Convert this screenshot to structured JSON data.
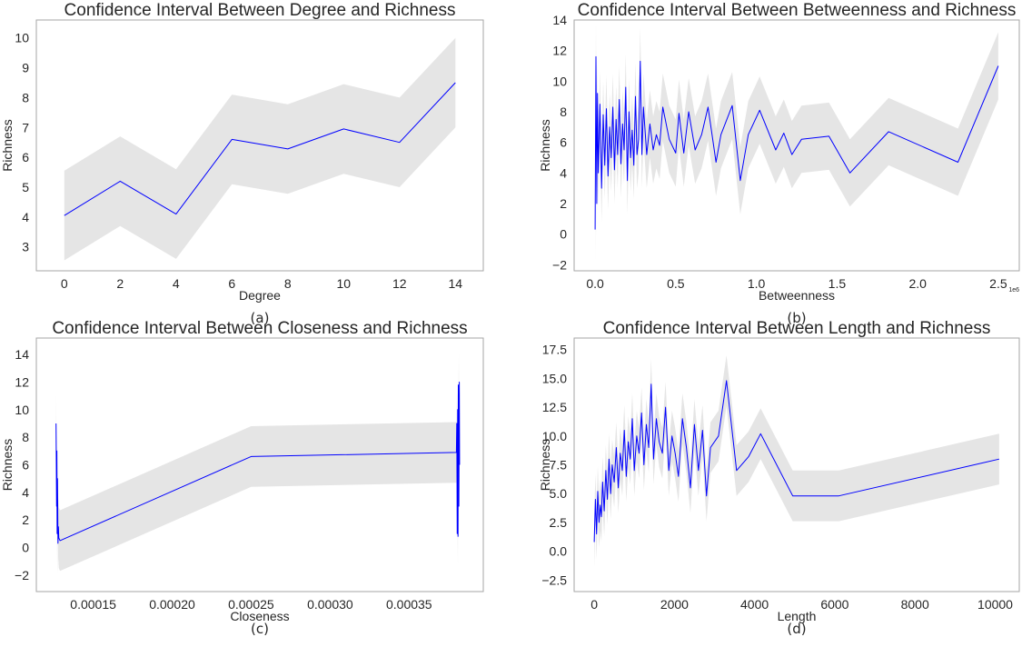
{
  "chart_data": [
    {
      "type": "line",
      "panel": "(a)",
      "title": "Confidence Interval Between Degree and Richness",
      "xlabel": "Degree",
      "ylabel": "Richness",
      "xlim": [
        -1,
        15
      ],
      "ylim": [
        2.2,
        10.6
      ],
      "xticks": [
        0,
        2,
        4,
        6,
        8,
        10,
        12,
        14
      ],
      "xtick_labels": [
        "0",
        "2",
        "4",
        "6",
        "8",
        "10",
        "12",
        "14"
      ],
      "yticks": [
        3,
        4,
        5,
        6,
        7,
        8,
        9,
        10
      ],
      "ytick_labels": [
        "3",
        "4",
        "5",
        "6",
        "7",
        "8",
        "9",
        "10"
      ],
      "grid": false,
      "line_color": "#0000ff",
      "band_color": "#e5e5e5",
      "series": [
        {
          "x": [
            0,
            2,
            4,
            6,
            8,
            10,
            12,
            14
          ],
          "y": [
            4.05,
            5.2,
            4.1,
            6.6,
            6.28,
            6.95,
            6.5,
            8.5
          ],
          "lower": [
            2.55,
            3.7,
            2.6,
            5.1,
            4.78,
            5.45,
            5.0,
            7.0
          ],
          "upper": [
            5.55,
            6.7,
            5.6,
            8.1,
            7.78,
            8.45,
            8.0,
            10.0
          ]
        }
      ]
    },
    {
      "type": "line",
      "panel": "(b)",
      "title": "Confidence Interval Between Betweenness and Richness",
      "xlabel": "Betweenness",
      "ylabel": "Richness",
      "offset_label": "1e6",
      "xlim": [
        -0.13,
        2.63
      ],
      "ylim": [
        -2.4,
        14.0
      ],
      "xticks": [
        0.0,
        0.5,
        1.0,
        1.5,
        2.0,
        2.5
      ],
      "xtick_labels": [
        "0.0",
        "0.5",
        "1.0",
        "1.5",
        "2.0",
        "2.5"
      ],
      "yticks": [
        -2,
        0,
        2,
        4,
        6,
        8,
        10,
        12,
        14
      ],
      "ytick_labels": [
        "−2",
        "0",
        "2",
        "4",
        "6",
        "8",
        "10",
        "12",
        "14"
      ],
      "grid": false,
      "line_color": "#0000ff",
      "band_color": "#e5e5e5",
      "series": [
        {
          "x": [
            0.0,
            0.005,
            0.01,
            0.015,
            0.02,
            0.03,
            0.04,
            0.05,
            0.06,
            0.07,
            0.08,
            0.09,
            0.1,
            0.11,
            0.12,
            0.13,
            0.14,
            0.15,
            0.16,
            0.17,
            0.18,
            0.19,
            0.2,
            0.21,
            0.22,
            0.23,
            0.24,
            0.25,
            0.26,
            0.27,
            0.28,
            0.29,
            0.3,
            0.32,
            0.34,
            0.36,
            0.38,
            0.4,
            0.42,
            0.46,
            0.5,
            0.52,
            0.55,
            0.58,
            0.62,
            0.66,
            0.7,
            0.75,
            0.78,
            0.85,
            0.9,
            0.95,
            1.02,
            1.12,
            1.17,
            1.22,
            1.28,
            1.45,
            1.58,
            1.82,
            2.25,
            2.5
          ],
          "y": [
            0.3,
            11.6,
            2.0,
            9.2,
            4.0,
            8.5,
            3.0,
            7.8,
            4.5,
            8.2,
            3.8,
            7.0,
            5.0,
            8.3,
            4.2,
            7.5,
            5.2,
            8.8,
            4.6,
            7.2,
            5.5,
            9.6,
            3.5,
            8.0,
            5.0,
            6.8,
            4.5,
            9.0,
            5.2,
            6.2,
            11.3,
            5.2,
            8.3,
            5.2,
            7.2,
            5.5,
            6.5,
            5.8,
            8.3,
            6.2,
            5.3,
            7.9,
            5.3,
            8.0,
            5.5,
            6.5,
            8.3,
            4.7,
            6.5,
            8.4,
            3.5,
            6.5,
            8.1,
            5.5,
            6.6,
            5.2,
            6.2,
            6.4,
            4.0,
            6.7,
            4.7,
            11.0
          ]
        }
      ]
    },
    {
      "type": "line",
      "panel": "(c)",
      "title": "Confidence Interval Between Closeness and Richness",
      "xlabel": "Closeness",
      "ylabel": "Richness",
      "xlim": [
        0.000114,
        0.000397
      ],
      "ylim": [
        -3.2,
        15.2
      ],
      "xticks": [
        0.00015,
        0.0002,
        0.00025,
        0.0003,
        0.00035
      ],
      "xtick_labels": [
        "0.00015",
        "0.00020",
        "0.00025",
        "0.00030",
        "0.00035"
      ],
      "yticks": [
        -2,
        0,
        2,
        4,
        6,
        8,
        10,
        12,
        14
      ],
      "ytick_labels": [
        "−2",
        "0",
        "2",
        "4",
        "6",
        "8",
        "10",
        "12",
        "14"
      ],
      "grid": false,
      "line_color": "#0000ff",
      "band_color": "#e5e5e5",
      "series": [
        {
          "x": [
            0.0001265,
            0.0001268,
            0.000127,
            0.0001272,
            0.0001274,
            0.0001277,
            0.000128,
            0.0001282,
            0.000129,
            0.00025,
            0.00038,
            0.0003802,
            0.0003805,
            0.0003808,
            0.000381,
            0.0003812,
            0.0003815,
            0.0003818,
            0.000382
          ],
          "y": [
            9.0,
            3.0,
            7.0,
            1.0,
            5.0,
            0.3,
            1.5,
            0.7,
            0.5,
            6.6,
            6.9,
            9.0,
            1.0,
            10.0,
            0.8,
            11.8,
            3.0,
            12.0,
            6.0
          ]
        }
      ]
    },
    {
      "type": "line",
      "panel": "(d)",
      "title": "Confidence Interval Between Length and Richness",
      "xlabel": "Length",
      "ylabel": "Richness",
      "xlim": [
        -500,
        10600
      ],
      "ylim": [
        -3.5,
        18.5
      ],
      "xticks": [
        0,
        2000,
        4000,
        6000,
        8000,
        10000
      ],
      "xtick_labels": [
        "0",
        "2000",
        "4000",
        "6000",
        "8000",
        "10000"
      ],
      "yticks": [
        -2.5,
        0.0,
        2.5,
        5.0,
        7.5,
        10.0,
        12.5,
        15.0,
        17.5
      ],
      "ytick_labels": [
        "−2.5",
        "0.0",
        "2.5",
        "5.0",
        "7.5",
        "10.0",
        "12.5",
        "15.0",
        "17.5"
      ],
      "grid": false,
      "line_color": "#0000ff",
      "band_color": "#e5e5e5",
      "series": [
        {
          "x": [
            0,
            30,
            60,
            90,
            120,
            150,
            180,
            210,
            250,
            290,
            330,
            370,
            410,
            450,
            500,
            550,
            600,
            650,
            700,
            750,
            800,
            850,
            900,
            950,
            1000,
            1060,
            1120,
            1180,
            1240,
            1300,
            1360,
            1420,
            1480,
            1550,
            1620,
            1700,
            1780,
            1860,
            1940,
            2020,
            2100,
            2200,
            2300,
            2400,
            2500,
            2600,
            2700,
            2800,
            2900,
            3100,
            3300,
            3550,
            3850,
            4150,
            4950,
            6100,
            10100
          ],
          "y": [
            0.8,
            4.5,
            1.5,
            5.2,
            2.5,
            4.0,
            3.0,
            6.0,
            3.5,
            7.0,
            4.5,
            8.0,
            5.0,
            7.5,
            6.0,
            9.0,
            5.5,
            8.5,
            7.0,
            10.5,
            6.5,
            9.5,
            8.0,
            11.5,
            7.0,
            10.0,
            8.5,
            12.0,
            7.5,
            11.0,
            9.0,
            14.5,
            8.0,
            11.5,
            9.5,
            8.5,
            12.5,
            7.0,
            10.0,
            8.5,
            6.5,
            11.5,
            9.0,
            5.5,
            11.0,
            7.0,
            10.5,
            4.8,
            9.0,
            10.0,
            14.8,
            7.0,
            8.2,
            10.2,
            4.8,
            4.8,
            8.0
          ]
        }
      ]
    }
  ],
  "captions": [
    "(a)",
    "(b)",
    "(c)",
    "(d)"
  ]
}
